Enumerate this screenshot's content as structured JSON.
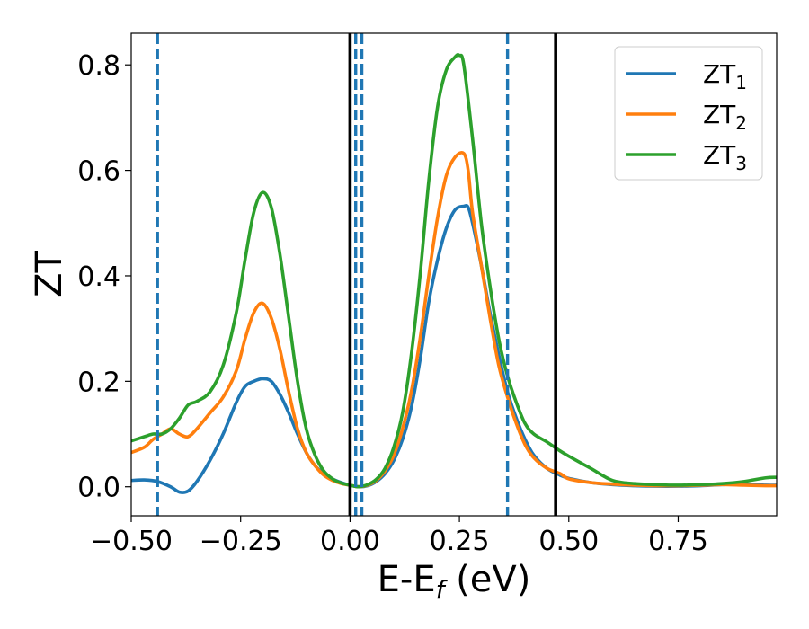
{
  "chart_data": {
    "type": "line",
    "xlabel_main": "E-E",
    "xlabel_sub": "f",
    "xlabel_unit": " (eV)",
    "ylabel": "ZT",
    "xlim": [
      -0.5,
      0.975
    ],
    "ylim": [
      -0.055,
      0.86
    ],
    "xticks": [
      -0.5,
      -0.25,
      0.0,
      0.25,
      0.5,
      0.75
    ],
    "xtick_labels": [
      "−0.50",
      "−0.25",
      "0.00",
      "0.25",
      "0.50",
      "0.75"
    ],
    "yticks": [
      0.0,
      0.2,
      0.4,
      0.6,
      0.8
    ],
    "ytick_labels": [
      "0.0",
      "0.2",
      "0.4",
      "0.6",
      "0.8"
    ],
    "grid": false,
    "legend_position": "top-right",
    "series": [
      {
        "name_main": "ZT",
        "name_sub": "1",
        "color": "#1f77b4",
        "x": [
          -0.5,
          -0.47,
          -0.44,
          -0.41,
          -0.39,
          -0.37,
          -0.35,
          -0.32,
          -0.29,
          -0.26,
          -0.24,
          -0.22,
          -0.2,
          -0.18,
          -0.16,
          -0.14,
          -0.12,
          -0.1,
          -0.08,
          -0.06,
          -0.04,
          -0.02,
          0.0,
          0.02,
          0.04,
          0.06,
          0.08,
          0.1,
          0.12,
          0.14,
          0.16,
          0.18,
          0.2,
          0.22,
          0.24,
          0.26,
          0.27,
          0.28,
          0.3,
          0.32,
          0.34,
          0.36,
          0.38,
          0.4,
          0.42,
          0.45,
          0.48,
          0.5,
          0.55,
          0.6,
          0.65,
          0.7,
          0.75,
          0.8,
          0.85,
          0.9,
          0.95,
          0.975
        ],
        "y": [
          0.012,
          0.013,
          0.01,
          0.0,
          -0.01,
          -0.008,
          0.01,
          0.05,
          0.1,
          0.16,
          0.19,
          0.2,
          0.205,
          0.2,
          0.175,
          0.14,
          0.1,
          0.065,
          0.04,
          0.025,
          0.015,
          0.008,
          0.003,
          0.0,
          0.002,
          0.01,
          0.025,
          0.05,
          0.09,
          0.15,
          0.24,
          0.35,
          0.43,
          0.49,
          0.525,
          0.532,
          0.53,
          0.5,
          0.42,
          0.33,
          0.25,
          0.18,
          0.13,
          0.09,
          0.06,
          0.035,
          0.022,
          0.016,
          0.008,
          0.004,
          0.002,
          0.001,
          0.001,
          0.002,
          0.004,
          0.005,
          0.003,
          0.003
        ]
      },
      {
        "name_main": "ZT",
        "name_sub": "2",
        "color": "#ff7f0e",
        "x": [
          -0.5,
          -0.47,
          -0.45,
          -0.43,
          -0.41,
          -0.39,
          -0.37,
          -0.35,
          -0.32,
          -0.29,
          -0.26,
          -0.24,
          -0.22,
          -0.2,
          -0.18,
          -0.16,
          -0.14,
          -0.12,
          -0.1,
          -0.08,
          -0.06,
          -0.04,
          -0.02,
          0.0,
          0.02,
          0.04,
          0.06,
          0.08,
          0.1,
          0.12,
          0.14,
          0.16,
          0.18,
          0.2,
          0.22,
          0.24,
          0.26,
          0.27,
          0.28,
          0.3,
          0.32,
          0.34,
          0.36,
          0.38,
          0.4,
          0.42,
          0.45,
          0.48,
          0.5,
          0.55,
          0.6,
          0.65,
          0.7,
          0.75,
          0.8,
          0.85,
          0.9,
          0.95,
          0.975
        ],
        "y": [
          0.065,
          0.075,
          0.09,
          0.1,
          0.11,
          0.1,
          0.095,
          0.11,
          0.14,
          0.17,
          0.22,
          0.28,
          0.33,
          0.348,
          0.32,
          0.26,
          0.18,
          0.11,
          0.065,
          0.04,
          0.022,
          0.012,
          0.006,
          0.003,
          0.0,
          0.003,
          0.012,
          0.03,
          0.06,
          0.11,
          0.18,
          0.28,
          0.4,
          0.51,
          0.59,
          0.625,
          0.632,
          0.6,
          0.52,
          0.42,
          0.32,
          0.23,
          0.17,
          0.12,
          0.08,
          0.055,
          0.035,
          0.025,
          0.015,
          0.008,
          0.005,
          0.003,
          0.002,
          0.002,
          0.003,
          0.004,
          0.003,
          0.002,
          0.002
        ]
      },
      {
        "name_main": "ZT",
        "name_sub": "3",
        "color": "#2ca02c",
        "x": [
          -0.5,
          -0.47,
          -0.45,
          -0.43,
          -0.41,
          -0.39,
          -0.37,
          -0.35,
          -0.32,
          -0.29,
          -0.26,
          -0.24,
          -0.22,
          -0.2,
          -0.18,
          -0.16,
          -0.14,
          -0.12,
          -0.1,
          -0.08,
          -0.06,
          -0.04,
          -0.02,
          0.0,
          0.02,
          0.04,
          0.06,
          0.08,
          0.1,
          0.12,
          0.14,
          0.16,
          0.18,
          0.2,
          0.22,
          0.24,
          0.25,
          0.26,
          0.28,
          0.3,
          0.32,
          0.34,
          0.36,
          0.38,
          0.4,
          0.42,
          0.45,
          0.48,
          0.5,
          0.55,
          0.6,
          0.65,
          0.7,
          0.75,
          0.8,
          0.85,
          0.9,
          0.95,
          0.975
        ],
        "y": [
          0.087,
          0.095,
          0.1,
          0.1,
          0.11,
          0.13,
          0.155,
          0.162,
          0.18,
          0.23,
          0.33,
          0.43,
          0.52,
          0.558,
          0.53,
          0.44,
          0.32,
          0.2,
          0.11,
          0.06,
          0.03,
          0.015,
          0.007,
          0.003,
          0.0,
          0.004,
          0.014,
          0.035,
          0.075,
          0.14,
          0.25,
          0.4,
          0.58,
          0.72,
          0.79,
          0.815,
          0.818,
          0.8,
          0.66,
          0.5,
          0.38,
          0.28,
          0.21,
          0.16,
          0.12,
          0.1,
          0.085,
          0.068,
          0.058,
          0.035,
          0.012,
          0.006,
          0.004,
          0.003,
          0.004,
          0.006,
          0.01,
          0.017,
          0.018
        ]
      }
    ],
    "vertical_lines": [
      {
        "x": -0.44,
        "style": "dashed",
        "color": "#1f77b4"
      },
      {
        "x": 0.0,
        "style": "solid",
        "color": "#000000"
      },
      {
        "x": 0.013,
        "style": "dashed",
        "color": "#1f77b4"
      },
      {
        "x": 0.027,
        "style": "dashed",
        "color": "#1f77b4"
      },
      {
        "x": 0.36,
        "style": "dashed",
        "color": "#1f77b4"
      },
      {
        "x": 0.47,
        "style": "solid",
        "color": "#000000"
      }
    ]
  }
}
